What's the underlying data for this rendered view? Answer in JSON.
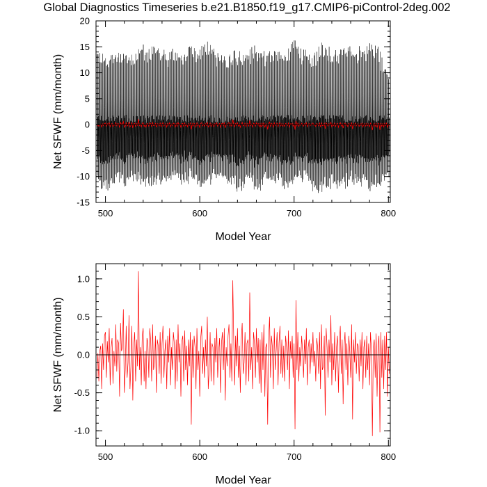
{
  "chart_data": [
    {
      "type": "line",
      "title": "Global Diagnostics Timeseries b.e21.B1850.f19_g17.CMIP6-piControl-2deg.002",
      "xlabel": "Model Year",
      "ylabel": "Net SFWF (mm/month)",
      "xlim": [
        490,
        802
      ],
      "ylim": [
        -15,
        20
      ],
      "xticks": [
        500,
        600,
        700,
        800
      ],
      "yticks": [
        -15,
        -10,
        -5,
        0,
        5,
        10,
        15,
        20
      ],
      "reference_line": 0,
      "series": [
        {
          "color": "#000000",
          "resolution": "monthly",
          "envelope": {
            "max_typical": [
              13,
              16
            ],
            "min_typical": [
              -12,
              -9
            ]
          },
          "x": [
            491,
            500,
            510,
            520,
            530,
            540,
            550,
            560,
            570,
            580,
            590,
            600,
            610,
            620,
            630,
            640,
            650,
            660,
            670,
            680,
            690,
            700,
            710,
            720,
            730,
            740,
            750,
            760,
            770,
            780,
            790,
            800
          ],
          "max": [
            14.2,
            13.4,
            14.1,
            14.6,
            13.2,
            14.9,
            15.8,
            14.6,
            14.2,
            14.1,
            15.2,
            15.0,
            16.2,
            14.1,
            13.6,
            14.1,
            14.1,
            15.0,
            13.4,
            14.2,
            13.6,
            17.0,
            14.4,
            13.8,
            15.8,
            14.1,
            15.2,
            15.8,
            14.6,
            15.7,
            14.4,
            10.0
          ],
          "min": [
            -11.8,
            -12.7,
            -11.0,
            -12.2,
            -10.5,
            -12.2,
            -11.7,
            -12.0,
            -10.4,
            -11.8,
            -10.8,
            -12.7,
            -11.5,
            -10.6,
            -11.3,
            -12.9,
            -11.6,
            -12.8,
            -11.0,
            -11.1,
            -13.1,
            -11.2,
            -10.9,
            -12.6,
            -12.6,
            -11.5,
            -12.5,
            -11.5,
            -11.4,
            -12.6,
            -12.1,
            -10.5
          ]
        },
        {
          "color": "#ff0000",
          "resolution": "annual mean",
          "values_description_ref": "chart_data.1.series.0"
        }
      ]
    },
    {
      "type": "line",
      "title": "",
      "xlabel": "Model Year",
      "ylabel": "Net SFWF (mm/month)",
      "xlim": [
        490,
        802
      ],
      "ylim": [
        -1.2,
        1.2
      ],
      "xticks": [
        500,
        600,
        700,
        800
      ],
      "yticks": [
        -1.0,
        -0.5,
        0.0,
        0.5,
        1.0
      ],
      "ytick_labels": [
        "-1.0",
        "-0.5",
        "0.0",
        "0.5",
        "1.0"
      ],
      "reference_line": 0,
      "series": [
        {
          "color": "#ff0000",
          "x_start": 491,
          "x_step": 1,
          "values": [
            -0.3,
            0.02,
            -0.35,
            0.05,
            0.12,
            -0.45,
            0.15,
            -0.2,
            0.25,
            0.3,
            -0.3,
            0.18,
            -0.1,
            0.35,
            -0.4,
            0.1,
            0.22,
            -0.38,
            0.05,
            -0.15,
            0.4,
            -0.22,
            0.2,
            0.15,
            -0.55,
            0.42,
            0.05,
            0.1,
            0.6,
            -0.5,
            -0.2,
            0.38,
            -0.3,
            -0.1,
            0.52,
            -0.45,
            -0.15,
            0.38,
            -0.6,
            0.1,
            0.3,
            -0.35,
            0.2,
            -0.15,
            1.1,
            -0.2,
            0.1,
            -0.4,
            0.25,
            0.35,
            -0.35,
            0.05,
            -0.45,
            0.22,
            0.15,
            -0.3,
            0.35,
            0.18,
            -0.35,
            0.4,
            -0.2,
            -0.1,
            0.25,
            -0.5,
            0.2,
            0.12,
            -0.25,
            0.3,
            -0.38,
            0.15,
            0.38,
            -0.3,
            0.05,
            0.2,
            -0.45,
            0.25,
            -0.1,
            0.35,
            -0.4,
            0.1,
            -0.2,
            0.3,
            0.15,
            -0.45,
            0.2,
            -0.35,
            0.4,
            -0.1,
            0.15,
            -0.55,
            0.18,
            0.25,
            -0.35,
            0.32,
            -0.2,
            0.12,
            -0.4,
            0.2,
            -0.15,
            0.3,
            -0.92,
            0.2,
            -0.3,
            0.25,
            0.1,
            -0.45,
            0.35,
            -0.2,
            0.05,
            -0.55,
            0.22,
            0.38,
            -0.25,
            0.1,
            -0.3,
            0.2,
            -0.15,
            0.5,
            -0.45,
            -0.2,
            0.3,
            -0.35,
            0.15,
            0.1,
            -0.4,
            0.22,
            -0.1,
            0.35,
            -0.3,
            0.05,
            0.22,
            -0.5,
            0.15,
            0.3,
            -0.2,
            0.35,
            -0.6,
            0.1,
            -0.15,
            0.25,
            0.4,
            -0.3,
            0.15,
            -0.35,
            0.98,
            0.2,
            -0.4,
            0.25,
            -0.15,
            0.35,
            -0.3,
            0.12,
            -0.5,
            0.2,
            0.42,
            -0.25,
            -0.1,
            0.3,
            -0.4,
            0.15,
            0.2,
            -0.35,
            0.82,
            -0.2,
            0.1,
            -0.45,
            0.3,
            0.15,
            -0.3,
            0.35,
            -0.1,
            0.22,
            -0.38,
            0.2,
            -0.5,
            0.3,
            -0.2,
            0.4,
            -0.55,
            0.1,
            0.15,
            -0.92,
            0.2,
            0.5,
            -0.3,
            0.25,
            0.1,
            -0.45,
            0.35,
            -0.2,
            0.05,
            0.3,
            -0.4,
            0.15,
            0.38,
            -0.25,
            0.2,
            -0.3,
            0.12,
            -0.35,
            0.25,
            0.1,
            -0.2,
            0.32,
            -0.45,
            0.18,
            -0.05,
            0.25,
            -0.3,
            0.15,
            -0.98,
            0.72,
            -0.2,
            0.3,
            -0.35,
            0.1,
            -0.15,
            0.25,
            0.05,
            -0.3,
            0.2,
            -0.12,
            0.35,
            -0.4,
            0.1,
            0.2,
            -0.25,
            0.15,
            -0.1,
            0.3,
            -0.15,
            0.05,
            -0.35,
            0.22,
            0.1,
            -0.25,
            0.3,
            -0.45,
            0.4,
            -0.2,
            -0.15,
            0.25,
            -0.8,
            0.35,
            0.1,
            -0.3,
            0.2,
            -0.1,
            0.52,
            -0.4,
            0.15,
            -0.2,
            0.3,
            -0.35,
            0.1,
            0.25,
            -0.5,
            0.15,
            0.38,
            -0.25,
            0.2,
            -0.65,
            0.1,
            0.3,
            -0.2,
            0.15,
            -0.4,
            0.25,
            0.05,
            -0.3,
            0.4,
            -0.85,
            0.2,
            -0.1,
            0.3,
            -0.25,
            0.15,
            0.12,
            -0.35,
            0.2,
            -0.15,
            0.3,
            -0.45,
            0.1,
            0.2,
            -0.3,
            0.25,
            -0.2,
            0.15,
            -0.4,
            0.3,
            0.05,
            -1.07,
            0.1,
            0.2,
            -0.3,
            0.28,
            -0.55,
            0.1,
            0.25,
            -1.02,
            0.3,
            -0.3,
            0.2,
            -0.45,
            0.25,
            -0.2,
            0.3,
            -0.55,
            0.1,
            -0.25
          ]
        }
      ]
    }
  ]
}
